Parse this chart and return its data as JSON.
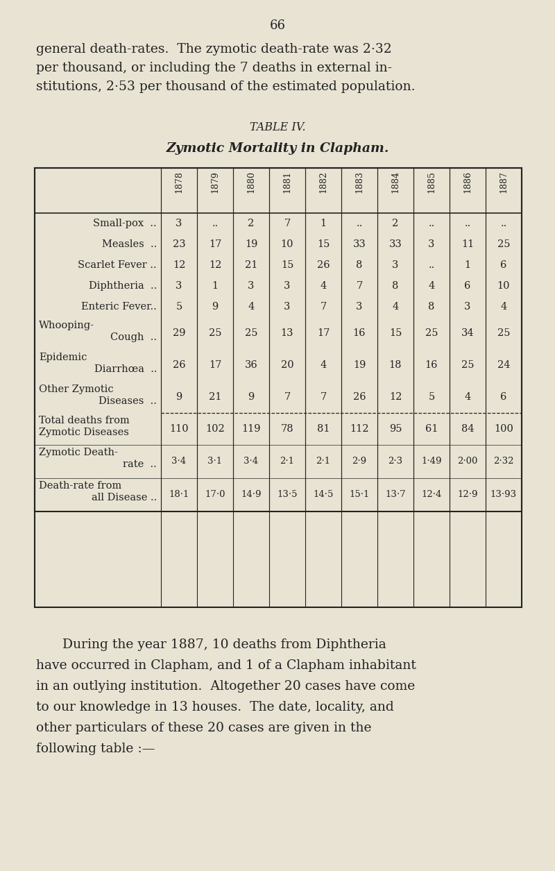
{
  "page_number": "66",
  "bg_color": "#e8e3d3",
  "text_color": "#222222",
  "intro_lines": [
    "general death-rates.  The zymotic death-rate was 2·32",
    "per thousand, or including the 7 deaths in external in-",
    "stitutions, 2·53 per thousand of the estimated population."
  ],
  "table_title": "TABLE IV.",
  "table_subtitle": "Zymotic Mortality in Clapham.",
  "years": [
    "1878",
    "1879",
    "1880",
    "1881",
    "1882",
    "1883",
    "1884",
    "1885",
    "1886",
    "1887"
  ],
  "row_data": [
    {
      "label1": "Small-pox",
      "label2": null,
      "dots": "..",
      "values": [
        "3",
        "..",
        "2",
        "7",
        "1",
        "..",
        "2",
        "..",
        "..",
        ".."
      ]
    },
    {
      "label1": "Measles",
      "label2": null,
      "dots": "..",
      "values": [
        "23",
        "17",
        "19",
        "10",
        "15",
        "33",
        "33",
        "3",
        "11",
        "25"
      ]
    },
    {
      "label1": "Scarlet Fever ..",
      "label2": null,
      "dots": null,
      "values": [
        "12",
        "12",
        "21",
        "15",
        "26",
        "8",
        "3",
        "..",
        "1",
        "6"
      ]
    },
    {
      "label1": "Diphtheria",
      "label2": null,
      "dots": "..",
      "values": [
        "3",
        "1",
        "3",
        "3",
        "4",
        "7",
        "8",
        "4",
        "6",
        "10"
      ]
    },
    {
      "label1": "Enteric Fever..",
      "label2": null,
      "dots": null,
      "values": [
        "5",
        "9",
        "4",
        "3",
        "7",
        "3",
        "4",
        "8",
        "3",
        "4"
      ]
    },
    {
      "label1": "Whooping-",
      "label2": "Cough",
      "dots": "..",
      "values": [
        "29",
        "25",
        "25",
        "13",
        "17",
        "16",
        "15",
        "25",
        "34",
        "25"
      ]
    },
    {
      "label1": "Epidemic",
      "label2": "Diarrhœa",
      "dots": "..",
      "values": [
        "26",
        "17",
        "36",
        "20",
        "4",
        "19",
        "18",
        "16",
        "25",
        "24"
      ]
    },
    {
      "label1": "Other Zymotic",
      "label2": "Diseases",
      "dots": "..",
      "values": [
        "9",
        "21",
        "9",
        "7",
        "7",
        "26",
        "12",
        "5",
        "4",
        "6"
      ]
    }
  ],
  "total_label1": "Total deaths from",
  "total_label2": "Zymotic Diseases",
  "total_values": [
    "110",
    "102",
    "119",
    "78",
    "81",
    "112",
    "95",
    "61",
    "84",
    "100"
  ],
  "zymo_label1": "Zymotic Death-",
  "zymo_label2": "rate",
  "zymo_dots": "..",
  "zymo_values": [
    "3·4",
    "3·1",
    "3·4",
    "2·1",
    "2·1",
    "2·9",
    "2·3",
    "1·49",
    "2·00",
    "2·32"
  ],
  "dr_label1": "Death-rate from",
  "dr_label2": "all Disease ..",
  "dr_values": [
    "18·1",
    "17·0",
    "14·9",
    "13·5",
    "14·5",
    "15·1",
    "13·7",
    "12·4",
    "12·9",
    "13·93"
  ],
  "footer_lines": [
    "During the year 1887, 10 deaths from Diphtheria",
    "have occurred in Clapham, and 1 of a Clapham inhabitant",
    "in an outlying institution.  Altogether 20 cases have come",
    "to our knowledge in 13 houses.  The date, locality, and",
    "other particulars of these 20 cases are given in the",
    "following table :—"
  ]
}
